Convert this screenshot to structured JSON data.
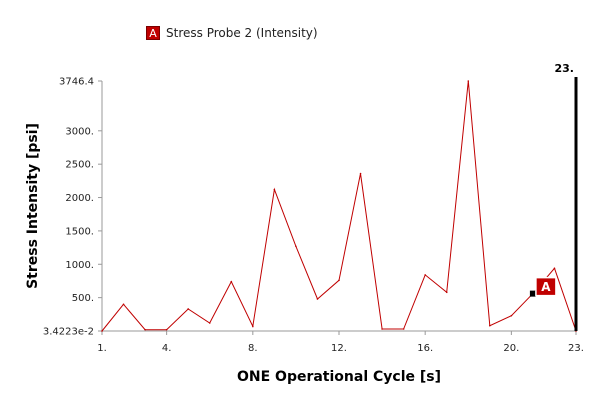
{
  "legend": {
    "badge": "A",
    "label": "Stress Probe 2  (Intensity)"
  },
  "colors": {
    "series": "#c00000",
    "axis": "#999999",
    "marker": "#000000",
    "probe_fill": "#c00000",
    "probe_border": "#ffffff"
  },
  "chart_data": {
    "type": "line",
    "title": "",
    "xlabel": "ONE Operational Cycle [s]",
    "ylabel": "Stress Intensity [psi]",
    "xlim": [
      1,
      23
    ],
    "ylim": [
      0.034223,
      3746.4
    ],
    "x_ticks": [
      {
        "v": 1,
        "label": "1."
      },
      {
        "v": 4,
        "label": "4."
      },
      {
        "v": 8,
        "label": "8."
      },
      {
        "v": 12,
        "label": "12."
      },
      {
        "v": 16,
        "label": "16."
      },
      {
        "v": 20,
        "label": "20."
      },
      {
        "v": 23,
        "label": "23."
      }
    ],
    "y_ticks": [
      {
        "v": 0.034223,
        "label": "3.4223e-2"
      },
      {
        "v": 500,
        "label": "500."
      },
      {
        "v": 1000,
        "label": "1000."
      },
      {
        "v": 1500,
        "label": "1500."
      },
      {
        "v": 2000,
        "label": "2000."
      },
      {
        "v": 2500,
        "label": "2500."
      },
      {
        "v": 3000,
        "label": "3000."
      },
      {
        "v": 3746.4,
        "label": "3746.4"
      }
    ],
    "series": [
      {
        "x": [
          1,
          2,
          3,
          4,
          5,
          6,
          7,
          8,
          9,
          10,
          11,
          12,
          13,
          14,
          15,
          16,
          17,
          18,
          19,
          20,
          21,
          22,
          23
        ],
        "values": [
          0.034223,
          400,
          20,
          20,
          330,
          120,
          740,
          70,
          2120,
          1270,
          480,
          760,
          2360,
          30,
          30,
          840,
          580,
          3746.4,
          80,
          230,
          560,
          940,
          0.034223
        ]
      }
    ],
    "current_time": {
      "x": 23,
      "label": "23."
    },
    "probe_marker": {
      "label": "A",
      "x": 21
    }
  }
}
